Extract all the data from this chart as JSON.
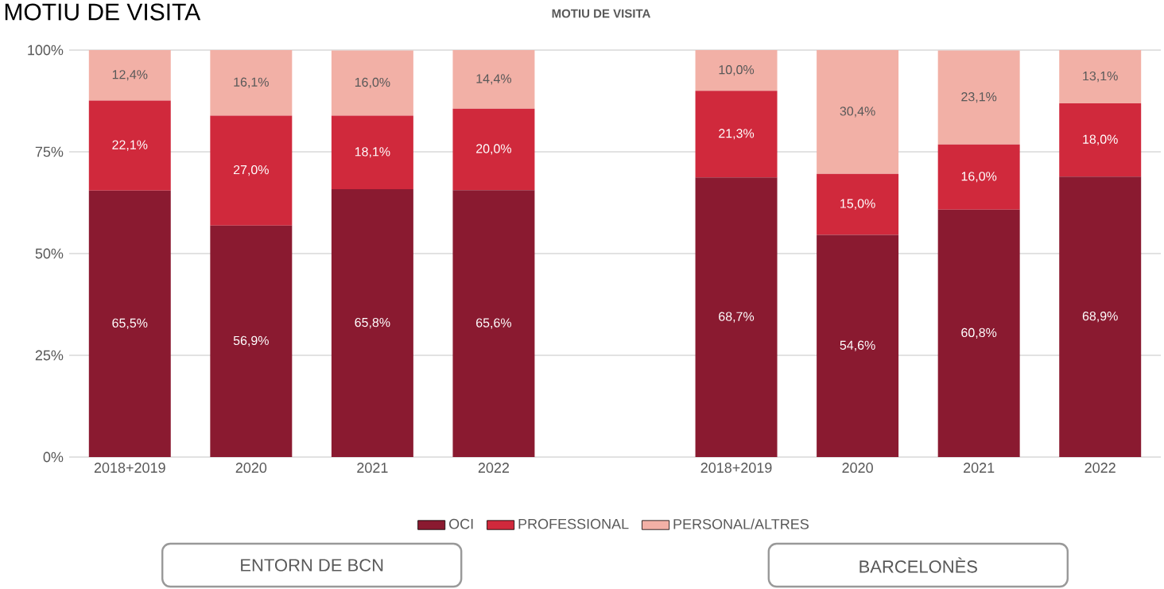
{
  "chart_data": {
    "type": "bar",
    "title": "MOTIU DE VISITA",
    "stacked": true,
    "categories": [
      "2018+2019",
      "2020",
      "2021",
      "2022",
      null,
      "2018+2019",
      "2020",
      "2021",
      "2022"
    ],
    "series": [
      {
        "name": "OCI",
        "color": "#8a1a30",
        "values": [
          65.5,
          56.9,
          65.8,
          65.6,
          null,
          68.7,
          54.6,
          60.8,
          68.9
        ],
        "value_labels": [
          "65,5%",
          "56,9%",
          "65,8%",
          "65,6%",
          null,
          "68,7%",
          "54,6%",
          "60,8%",
          "68,9%"
        ]
      },
      {
        "name": "PROFESSIONAL",
        "color": "#d0293c",
        "values": [
          22.1,
          27.0,
          18.1,
          20.0,
          null,
          21.3,
          15.0,
          16.0,
          18.0
        ],
        "value_labels": [
          "22,1%",
          "27,0%",
          "18,1%",
          "20,0%",
          null,
          "21,3%",
          "15,0%",
          "16,0%",
          "18,0%"
        ]
      },
      {
        "name": "PERSONAL/ALTRES",
        "color": "#f2b0a6",
        "values": [
          12.4,
          16.1,
          16.0,
          14.4,
          null,
          10.0,
          30.4,
          23.1,
          13.1
        ],
        "value_labels": [
          "12,4%",
          "16,1%",
          "16,0%",
          "14,4%",
          null,
          "10,0%",
          "30,4%",
          "23,1%",
          "13,1%"
        ]
      }
    ],
    "ylim": [
      0,
      100
    ],
    "yticks": [
      {
        "value": 0,
        "label": "0%"
      },
      {
        "value": 25,
        "label": "25%"
      },
      {
        "value": 50,
        "label": "50%"
      },
      {
        "value": 75,
        "label": "75%"
      },
      {
        "value": 100,
        "label": "100%"
      }
    ],
    "grid": "y",
    "legend": "bottom",
    "annotations": [
      "MOTIU DE VISITA",
      "ENTORN DE BCN",
      "BARCELONÈS"
    ]
  }
}
